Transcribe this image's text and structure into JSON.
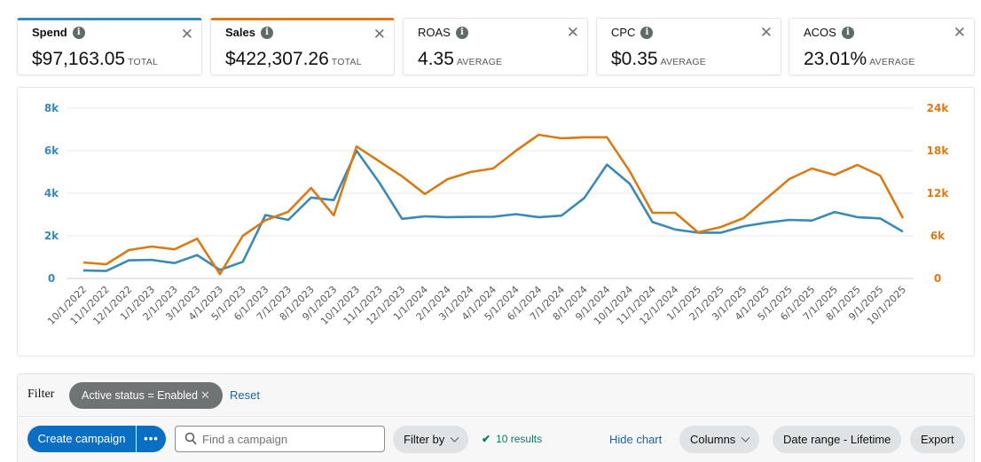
{
  "metric_cards": [
    {
      "id": "spend",
      "title": "Spend",
      "value": "$97,163.05",
      "unit": "TOTAL",
      "selected": true,
      "color": "#3a8ab7"
    },
    {
      "id": "sales",
      "title": "Sales",
      "value": "$422,307.26",
      "unit": "TOTAL",
      "selected": true,
      "color": "#d97b15"
    },
    {
      "id": "roas",
      "title": "ROAS",
      "value": "4.35",
      "unit": "AVERAGE",
      "selected": false
    },
    {
      "id": "cpc",
      "title": "CPC",
      "value": "$0.35",
      "unit": "AVERAGE",
      "selected": false
    },
    {
      "id": "acos",
      "title": "ACOS",
      "value": "23.01%",
      "unit": "AVERAGE",
      "selected": false
    }
  ],
  "icons": {
    "info": "info-icon",
    "close": "close-icon"
  },
  "chart_data": {
    "type": "line",
    "title": "",
    "xlabel": "",
    "ylabel": "",
    "grid": true,
    "x": [
      "10/1/2022",
      "11/1/2022",
      "12/1/2022",
      "1/1/2023",
      "2/1/2023",
      "3/1/2023",
      "4/1/2023",
      "5/1/2023",
      "6/1/2023",
      "7/1/2023",
      "8/1/2023",
      "9/1/2023",
      "10/1/2023",
      "11/1/2023",
      "12/1/2023",
      "1/1/2024",
      "2/1/2024",
      "3/1/2024",
      "4/1/2024",
      "5/1/2024",
      "6/1/2024",
      "7/1/2024",
      "8/1/2024",
      "9/1/2024",
      "10/1/2024",
      "11/1/2024",
      "12/1/2024",
      "1/1/2025",
      "2/1/2025",
      "3/1/2025",
      "4/1/2025",
      "5/1/2025",
      "6/1/2025",
      "7/1/2025",
      "8/1/2025",
      "9/1/2025",
      "10/1/2025"
    ],
    "y_left": {
      "ticks": [
        "0",
        "2k",
        "4k",
        "6k",
        "8k"
      ],
      "range": [
        0,
        8000
      ],
      "color": "#3a8ab7"
    },
    "y_right": {
      "ticks": [
        "0",
        "6k",
        "12k",
        "18k",
        "24k"
      ],
      "range": [
        0,
        24000
      ],
      "color": "#d97b15"
    },
    "series": [
      {
        "name": "Spend",
        "axis": "left",
        "color": "#3a8ab7",
        "values": [
          380,
          350,
          850,
          870,
          720,
          1100,
          400,
          780,
          2980,
          2750,
          3800,
          3680,
          6000,
          4500,
          2800,
          2920,
          2880,
          2890,
          2900,
          3020,
          2880,
          2950,
          3780,
          5350,
          4450,
          2650,
          2300,
          2150,
          2150,
          2450,
          2620,
          2750,
          2720,
          3120,
          2880,
          2820,
          2200
        ]
      },
      {
        "name": "Sales",
        "axis": "right",
        "color": "#d97b15",
        "values": [
          2250,
          2000,
          4000,
          4500,
          4100,
          5600,
          600,
          6000,
          8200,
          9400,
          12750,
          8900,
          18600,
          16500,
          14400,
          11900,
          14000,
          15000,
          15500,
          18000,
          20250,
          19750,
          19900,
          19900,
          15100,
          9250,
          9250,
          6500,
          7250,
          8500,
          11250,
          14000,
          15500,
          14600,
          16000,
          14500,
          8500
        ]
      }
    ]
  },
  "filter": {
    "label": "Filter",
    "active_filter": "Active status = Enabled",
    "remove_symbol": "✕",
    "reset_label": "Reset"
  },
  "toolbar": {
    "create_label": "Create campaign",
    "more_label": "•••",
    "search_placeholder": "Find a campaign",
    "search_value": "",
    "filter_by_label": "Filter by",
    "results_check": "✔",
    "results_text": "10 results",
    "hide_chart_label": "Hide chart",
    "columns_label": "Columns",
    "date_range_label": "Date range - Lifetime",
    "export_label": "Export"
  }
}
